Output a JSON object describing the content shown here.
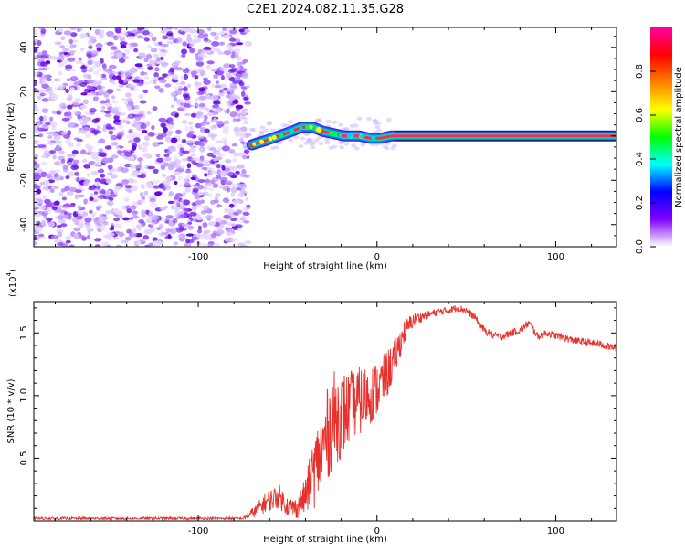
{
  "title": "C2E1.2024.082.11.35.G28",
  "chart_data": [
    {
      "type": "heatmap",
      "xlabel": "Height of straight line (km)",
      "ylabel": "Frequency (Hz)",
      "xlim": [
        -192,
        134
      ],
      "ylim": [
        -50,
        49
      ],
      "x_ticks": [
        -100,
        0,
        100
      ],
      "x_tick_labels": [
        "-100",
        "0",
        "100"
      ],
      "y_ticks": [
        -40,
        -20,
        0,
        20,
        40
      ],
      "y_tick_labels": [
        "-40",
        "-20",
        "0",
        "20",
        "40"
      ],
      "noise_region_x": [
        -192,
        -72
      ],
      "signal_track": [
        {
          "x": -70,
          "y": -4
        },
        {
          "x": -62,
          "y": -2
        },
        {
          "x": -55,
          "y": 0
        },
        {
          "x": -48,
          "y": 2
        },
        {
          "x": -42,
          "y": 4
        },
        {
          "x": -36,
          "y": 4
        },
        {
          "x": -30,
          "y": 2
        },
        {
          "x": -24,
          "y": 1
        },
        {
          "x": -18,
          "y": 0
        },
        {
          "x": -10,
          "y": 0
        },
        {
          "x": -4,
          "y": -1
        },
        {
          "x": 2,
          "y": -1
        },
        {
          "x": 8,
          "y": 0
        },
        {
          "x": 134,
          "y": 0
        }
      ],
      "colorbar": {
        "label": "Normalized spectral amplitude",
        "range": [
          0,
          1
        ],
        "ticks": [
          0.0,
          0.2,
          0.4,
          0.6,
          0.8
        ],
        "tick_labels": [
          "0.0",
          "0.2",
          "0.4",
          "0.6",
          "0.8"
        ],
        "colors": [
          "#ffffff",
          "#8000ff",
          "#0000ff",
          "#00ffff",
          "#00ff00",
          "#ffff00",
          "#ff8000",
          "#ff0000",
          "#ff00a0"
        ]
      }
    },
    {
      "type": "line",
      "xlabel": "Height of straight line (km)",
      "ylabel": "SNR (10 * v/v)",
      "multiplier_label": "(x10",
      "multiplier_exp": "4",
      "multiplier_close": ")",
      "xlim": [
        -192,
        134
      ],
      "ylim": [
        0,
        1.75
      ],
      "x_ticks": [
        -100,
        0,
        100
      ],
      "x_tick_labels": [
        "-100",
        "0",
        "100"
      ],
      "y_ticks": [
        0.5,
        1.0,
        1.5
      ],
      "y_tick_labels": [
        "0.5",
        "1.0",
        "1.5"
      ],
      "series": [
        {
          "color": "#e8312c",
          "x": [
            -192,
            -170,
            -150,
            -130,
            -110,
            -90,
            -75,
            -68,
            -62,
            -55,
            -50,
            -45,
            -40,
            -35,
            -30,
            -25,
            -20,
            -15,
            -10,
            -5,
            0,
            5,
            10,
            15,
            20,
            25,
            30,
            35,
            40,
            45,
            50,
            55,
            60,
            65,
            70,
            75,
            80,
            85,
            90,
            95,
            100,
            105,
            110,
            115,
            120,
            125,
            130,
            134
          ],
          "y": [
            0.02,
            0.02,
            0.02,
            0.02,
            0.02,
            0.02,
            0.02,
            0.08,
            0.15,
            0.2,
            0.12,
            0.1,
            0.2,
            0.4,
            0.6,
            0.8,
            0.85,
            0.9,
            0.95,
            1.0,
            1.05,
            1.15,
            1.3,
            1.5,
            1.6,
            1.63,
            1.65,
            1.67,
            1.68,
            1.7,
            1.68,
            1.62,
            1.52,
            1.48,
            1.47,
            1.5,
            1.52,
            1.58,
            1.47,
            1.5,
            1.48,
            1.46,
            1.44,
            1.43,
            1.42,
            1.41,
            1.39,
            1.38
          ],
          "noise_amp": [
            0.01,
            0.01,
            0.01,
            0.01,
            0.01,
            0.01,
            0.01,
            0.05,
            0.08,
            0.1,
            0.08,
            0.08,
            0.15,
            0.3,
            0.35,
            0.4,
            0.35,
            0.3,
            0.28,
            0.25,
            0.22,
            0.2,
            0.15,
            0.1,
            0.06,
            0.04,
            0.03,
            0.03,
            0.03,
            0.03,
            0.03,
            0.03,
            0.03,
            0.03,
            0.03,
            0.03,
            0.03,
            0.03,
            0.03,
            0.03,
            0.03,
            0.03,
            0.03,
            0.03,
            0.03,
            0.03,
            0.03,
            0.03
          ]
        }
      ]
    }
  ]
}
